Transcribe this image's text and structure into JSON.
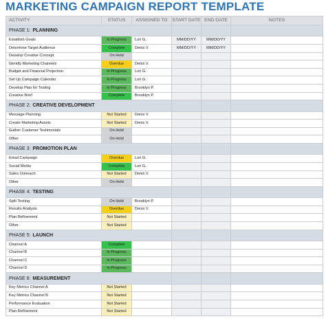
{
  "title": "MARKETING CAMPAIGN REPORT TEMPLATE",
  "columns": [
    "ACTIVITY",
    "STATUS",
    "ASSIGNED TO",
    "START DATE",
    "END DATE",
    "NOTES"
  ],
  "status_colors": {
    "In Progress": "#5cb85c",
    "Complete": "#34c24a",
    "On Hold": "#d2d4d6",
    "Overdue": "#f5cf1a",
    "Not Started": "#fbf0bc"
  },
  "phases": [
    {
      "label": "PHASE 1:",
      "name": "PLANNING",
      "rows": [
        {
          "activity": "Establish Goals",
          "status": "In Progress",
          "assigned": "Lori G.",
          "start": "MM/DD/YY",
          "end": "MM/DD/YY"
        },
        {
          "activity": "Determine Target Audience",
          "status": "Complete",
          "assigned": "Denis V.",
          "start": "MM/DD/YY",
          "end": "MM/DD/YY"
        },
        {
          "activity": "Develop Creative Concept",
          "status": "On Hold"
        },
        {
          "activity": "Identify Marketing Channels",
          "status": "Overdue",
          "assigned": "Denis V."
        },
        {
          "activity": "Budget and Financial Projection",
          "status": "In Progress",
          "assigned": "Lori G."
        },
        {
          "activity": "Set Up Campaign Calendar",
          "status": "In Progress",
          "assigned": "Lori G."
        },
        {
          "activity": "Develop Plan for Testing",
          "status": "In Progress",
          "assigned": "Brooklyn P."
        },
        {
          "activity": "Creative Brief",
          "status": "Complete",
          "assigned": "Brooklyn P."
        }
      ]
    },
    {
      "label": "PHASE 2:",
      "name": "CREATIVE DEVELOPMENT",
      "rows": [
        {
          "activity": "Message Planning",
          "status": "Not Started",
          "assigned": "Denis V."
        },
        {
          "activity": "Create Marketing Assets",
          "status": "Not Started",
          "assigned": "Denis V."
        },
        {
          "activity": "Gather Customer Testimonials",
          "status": "On Hold"
        },
        {
          "activity": "Other",
          "status": "On Hold"
        }
      ]
    },
    {
      "label": "PHASE 3:",
      "name": "PROMOTION PLAN",
      "rows": [
        {
          "activity": "Email Campaign",
          "status": "Overdue",
          "assigned": "Lori G."
        },
        {
          "activity": "Social Media",
          "status": "Complete",
          "assigned": "Lori G."
        },
        {
          "activity": "Sales Outreach",
          "status": "Not Started",
          "assigned": "Denis V."
        },
        {
          "activity": "Other",
          "status": "On Hold"
        }
      ]
    },
    {
      "label": "PHASE 4:",
      "name": "TESTING",
      "rows": [
        {
          "activity": "Split Testing",
          "status": "On Hold",
          "assigned": "Brooklyn P."
        },
        {
          "activity": "Results Analysis",
          "status": "Overdue",
          "assigned": "Denis V."
        },
        {
          "activity": "Plan Refinement",
          "status": "Not Started"
        },
        {
          "activity": "Other",
          "status": "Not Started"
        }
      ]
    },
    {
      "label": "PHASE 5:",
      "name": "LAUNCH",
      "rows": [
        {
          "activity": "Channel A",
          "status": "Complete"
        },
        {
          "activity": "Channel B",
          "status": "In Progress"
        },
        {
          "activity": "Channel C",
          "status": "In Progress"
        },
        {
          "activity": "Channel D",
          "status": "In Progress"
        }
      ]
    },
    {
      "label": "PHASE 6:",
      "name": "MEASUREMENT",
      "rows": [
        {
          "activity": "Key Metrics Channel A",
          "status": "Not Started"
        },
        {
          "activity": "Key Metrics Channel B",
          "status": "Not Started"
        },
        {
          "activity": "Performance Evaluation",
          "status": "Not Started"
        },
        {
          "activity": "Plan Refinement",
          "status": "Not Started"
        }
      ]
    }
  ]
}
